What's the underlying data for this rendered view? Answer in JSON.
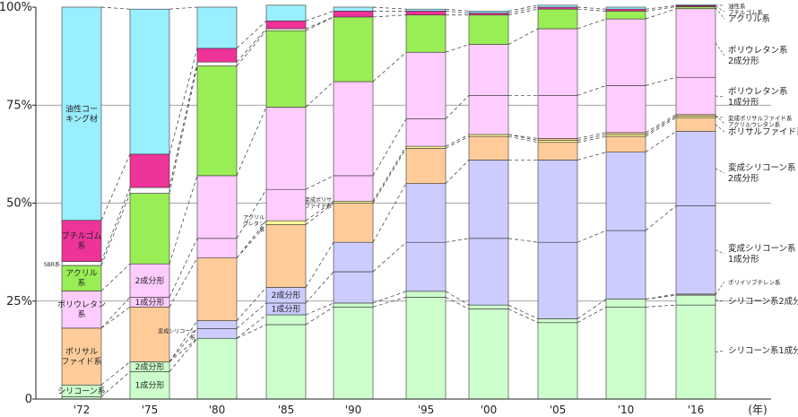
{
  "chart_data": {
    "type": "stacked-bar-100",
    "categories": [
      "'72",
      "'75",
      "'80",
      "'85",
      "'90",
      "'95",
      "'00",
      "'05",
      "'10",
      "'16"
    ],
    "x_unit": "(年)",
    "ylim": [
      0,
      100
    ],
    "yticks": [
      {
        "value": 0,
        "label": "0"
      },
      {
        "value": 25,
        "label": "25%"
      },
      {
        "value": 50,
        "label": "50%"
      },
      {
        "value": 75,
        "label": "75%"
      },
      {
        "value": 100,
        "label": "100%"
      }
    ],
    "series": [
      {
        "name": "シリコーン系1成分形",
        "color": "#ccffcc",
        "values": [
          0.6,
          7.0,
          15.5,
          19.0,
          23.5,
          26.0,
          23.0,
          19.5,
          23.5,
          24.0
        ]
      },
      {
        "name": "シリコーン系2成分形",
        "color": "#ccffcc",
        "values": [
          3.0,
          2.5,
          0,
          2.5,
          1.0,
          1.5,
          1.0,
          1.0,
          2.0,
          2.5
        ]
      },
      {
        "name": "ポリイソブチレン系",
        "color": "#aaaaaa",
        "values": [
          0,
          0,
          0,
          0,
          0,
          0,
          0,
          0,
          0,
          0.3
        ]
      },
      {
        "name": "変成シリコーン系1成分形",
        "color": "#ccccff",
        "values": [
          0,
          0,
          2.5,
          3.0,
          8.0,
          12.5,
          17.0,
          19.5,
          17.5,
          22.5
        ]
      },
      {
        "name": "変成シリコーン系2成分形",
        "color": "#ccccff",
        "values": [
          0,
          0,
          2.0,
          4.0,
          7.5,
          15.0,
          20.0,
          21.0,
          20.0,
          19.0
        ]
      },
      {
        "name": "ポリサルファイド系",
        "color": "#ffcc99",
        "values": [
          14.5,
          14.0,
          16.0,
          16.0,
          10.0,
          9.0,
          6.0,
          4.5,
          4.0,
          3.5
        ]
      },
      {
        "name": "変成ポリサルファイド系",
        "color": "#ffff99",
        "values": [
          0,
          0,
          0,
          1.0,
          0.5,
          0.5,
          0.5,
          0.5,
          0.5,
          0.4
        ]
      },
      {
        "name": "アクリルウレタン系",
        "color": "#ffcc99",
        "values": [
          0,
          0,
          0,
          0,
          0,
          0,
          0,
          0.5,
          0.5,
          0.4
        ]
      },
      {
        "name": "ポリウレタン系1成分形",
        "color": "#ffccff",
        "values": [
          0,
          2.5,
          5.0,
          8.0,
          6.5,
          7.0,
          10.0,
          11.0,
          12.0,
          9.5
        ]
      },
      {
        "name": "ポリウレタン系2成分形",
        "color": "#ffccff",
        "values": [
          9.5,
          8.5,
          16.0,
          21.0,
          24.0,
          17.0,
          13.0,
          17.0,
          17.0,
          17.5
        ]
      },
      {
        "name": "アクリル系",
        "color": "#99ee55",
        "values": [
          6.5,
          18.0,
          28.0,
          19.5,
          16.5,
          9.5,
          7.5,
          5.0,
          2.0,
          0.5
        ]
      },
      {
        "name": "SBR系",
        "color": "#ffffff",
        "values": [
          1.0,
          1.5,
          1.0,
          0.5,
          0,
          0,
          0,
          0,
          0,
          0
        ]
      },
      {
        "name": "ブチルゴム系",
        "color": "#ee3399",
        "values": [
          10.5,
          8.5,
          3.5,
          2.0,
          1.5,
          1.0,
          0.5,
          0.5,
          0.5,
          0.3
        ]
      },
      {
        "name": "油性コーキング材",
        "color": "#99eeff",
        "values": [
          54.4,
          37.0,
          10.5,
          4.0,
          1.0,
          0.5,
          0.5,
          0.5,
          0.5,
          0.2
        ]
      }
    ],
    "bar_labels": [
      {
        "bar": 0,
        "series": "油性コーキング材",
        "text": "油性コー\nキング材"
      },
      {
        "bar": 0,
        "series": "ブチルゴム系",
        "text": "ブチルゴム\n系"
      },
      {
        "bar": 0,
        "series": "アクリル系",
        "text": "アクリル\n系"
      },
      {
        "bar": 0,
        "series": "ポリウレタン系2成分形",
        "text": "ポリウレタン\n系"
      },
      {
        "bar": 0,
        "series": "ポリサルファイド系",
        "text": "ポリサル\nファイド系"
      },
      {
        "bar": 0,
        "series": "シリコーン系2成分形",
        "text": "シリコーン系"
      },
      {
        "bar": 1,
        "series": "ポリウレタン系2成分形",
        "text": "2成分形"
      },
      {
        "bar": 1,
        "series": "ポリウレタン系1成分形",
        "text": "1成分形"
      },
      {
        "bar": 1,
        "series": "シリコーン系2成分形",
        "text": "2成分形"
      },
      {
        "bar": 1,
        "series": "シリコーン系1成分形",
        "text": "1成分形"
      },
      {
        "bar": 3,
        "series": "変成シリコーン系2成分形",
        "text": "2成分形"
      },
      {
        "bar": 3,
        "series": "変成シリコーン系1成分形",
        "text": "1成分形"
      }
    ],
    "outside_labels": [
      {
        "text": "SBR系",
        "series": "SBR系",
        "bar": 0
      },
      {
        "text": "変成シリコーン\n系",
        "series": "変成シリコーン系1成分形",
        "bar": 2
      },
      {
        "text": "アクリル\nウレタン\n系",
        "series": "変成ポリサルファイド系",
        "bar": 3
      },
      {
        "text": "変成ポリサ\nファイド系",
        "series": "変成ポリサルファイド系",
        "bar": 4
      }
    ],
    "right_labels": [
      {
        "series": "油性コーキング材",
        "text": "油性系",
        "small": true
      },
      {
        "series": "ブチルゴム系",
        "text": "ブチルゴム系",
        "small": true
      },
      {
        "series": "アクリル系",
        "text": "アクリル系"
      },
      {
        "series": "ポリウレタン系2成分形",
        "text": "ポリウレタン系\n2成分形"
      },
      {
        "series": "ポリウレタン系1成分形",
        "text": "ポリウレタン系\n1成分形"
      },
      {
        "series": "変成ポリサルファイド系",
        "text": "変成ポリサルファイド系",
        "small": true
      },
      {
        "series": "アクリルウレタン系",
        "text": "アクリルウレタン系",
        "small": true
      },
      {
        "series": "ポリサルファイド系",
        "text": "ポリサルファイド系"
      },
      {
        "series": "変成シリコーン系2成分形",
        "text": "変成シリコーン系\n2成分形"
      },
      {
        "series": "変成シリコーン系1成分形",
        "text": "変成シリコーン系\n1成分形"
      },
      {
        "series": "ポリイソブチレン系",
        "text": "ポリイソブチレン系",
        "small": true
      },
      {
        "series": "シリコーン系2成分形",
        "text": "シリコーン系2成分形"
      },
      {
        "series": "シリコーン系1成分形",
        "text": "シリコーン系1成分形"
      }
    ],
    "grid": true,
    "legend": "none"
  }
}
